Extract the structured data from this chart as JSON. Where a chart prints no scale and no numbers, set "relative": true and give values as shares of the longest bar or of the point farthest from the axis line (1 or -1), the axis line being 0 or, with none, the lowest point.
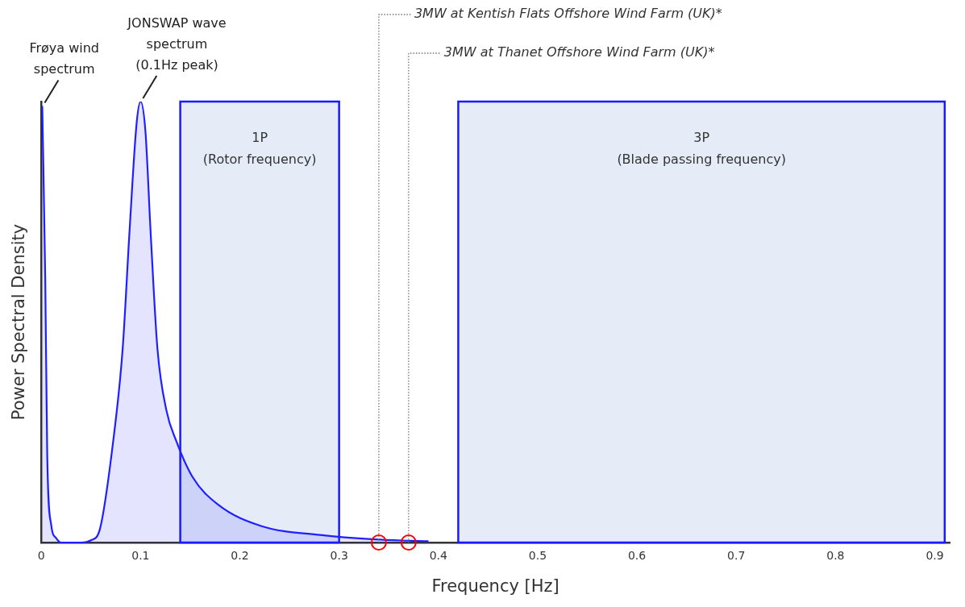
{
  "chart_data": {
    "type": "area",
    "xlabel": "Frequency [Hz]",
    "ylabel": "Power Spectral Density",
    "relative": true,
    "xlim": [
      0,
      0.915
    ],
    "xticks": [
      0,
      0.1,
      0.2,
      0.3,
      0.4,
      0.5,
      0.6,
      0.7,
      0.8,
      0.9
    ],
    "series": [
      {
        "type": "area",
        "color": "#1f1fff",
        "marker": "none",
        "x": [
          0.001,
          0.004,
          0.006,
          0.01,
          0.015,
          0.02,
          0.04,
          0.05,
          0.059,
          0.073,
          0.082,
          0.089,
          0.096,
          0.1,
          0.105,
          0.11,
          0.117,
          0.126,
          0.136,
          0.152,
          0.178,
          0.222,
          0.281,
          0.336,
          0.373,
          0.39
        ],
        "values": [
          0.99,
          0.6,
          0.2,
          0.04,
          0.01,
          0,
          0,
          0.005,
          0.03,
          0.24,
          0.44,
          0.71,
          0.95,
          1,
          0.93,
          0.71,
          0.44,
          0.3,
          0.23,
          0.15,
          0.086,
          0.037,
          0.017,
          0.007,
          0.004,
          0.003
        ]
      },
      {
        "type": "scatter",
        "color": "#ff0000",
        "marker": "circle",
        "x": [
          0.34,
          0.37
        ],
        "values": [
          0,
          0
        ]
      }
    ],
    "bands": [
      {
        "axis": "x",
        "from": 0.14,
        "to": 0.3,
        "label": "1P\n(Rotor frequency)",
        "color": "#e5ebf7"
      },
      {
        "axis": "x",
        "from": 0.42,
        "to": 0.91,
        "label": "3P\n(Blade passing frequency)",
        "color": "#e5ebf7"
      }
    ],
    "ref_lines": [
      {
        "axis": "x",
        "value": 0.34,
        "label": "3MW at Kentish Flats Offshore Wind Farm (UK)*",
        "color": "#777777",
        "line_style": "dotted"
      },
      {
        "axis": "x",
        "value": 0.37,
        "label": "3MW at Thanet Offshore Wind Farm (UK)*",
        "color": "#777777",
        "line_style": "dotted"
      }
    ],
    "annotations": [
      {
        "text": "Frøya wind\nspectrum",
        "x": 0.001,
        "y": 0.99
      },
      {
        "text": "JONSWAP wave\nspectrum\n(0.1Hz peak)",
        "x": 0.1,
        "y": 1
      }
    ],
    "grid": false,
    "legend": false
  }
}
